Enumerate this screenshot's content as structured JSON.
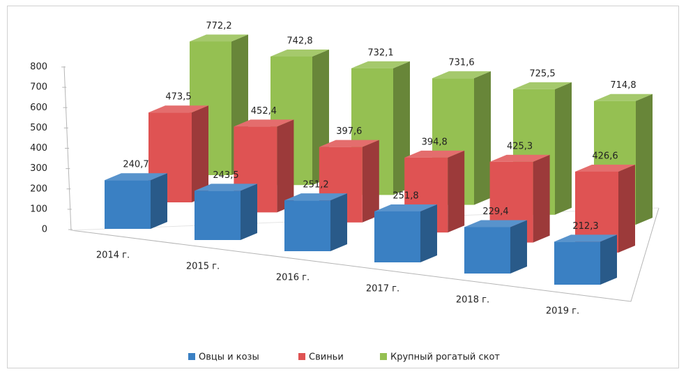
{
  "chart_data": {
    "type": "bar3d",
    "categories": [
      "2014 г.",
      "2015 г.",
      "2016 г.",
      "2017 г.",
      "2018 г.",
      "2019 г."
    ],
    "series": [
      {
        "name": "Овцы и козы",
        "color": "#3a80c3",
        "values": [
          240.7,
          243.5,
          251.2,
          251.8,
          229.4,
          212.3
        ],
        "value_labels": [
          "240,7",
          "243,5",
          "251,2",
          "251,8",
          "229,4",
          "212,3"
        ]
      },
      {
        "name": "Свиньи",
        "color": "#df5353",
        "values": [
          473.5,
          452.4,
          397.6,
          394.8,
          425.3,
          426.6
        ],
        "value_labels": [
          "473,5",
          "452,4",
          "397,6",
          "394,8",
          "425,3",
          "426,6"
        ]
      },
      {
        "name": "Крупный рогатый скот",
        "color": "#95c052",
        "values": [
          772.2,
          742.8,
          732.1,
          731.6,
          725.5,
          714.8
        ],
        "value_labels": [
          "772,2",
          "742,8",
          "732,1",
          "731,6",
          "725,5",
          "714,8"
        ]
      }
    ],
    "ylim": [
      0,
      800
    ],
    "yticks": [
      0,
      100,
      200,
      300,
      400,
      500,
      600,
      700,
      800
    ],
    "legend": "bottom"
  }
}
